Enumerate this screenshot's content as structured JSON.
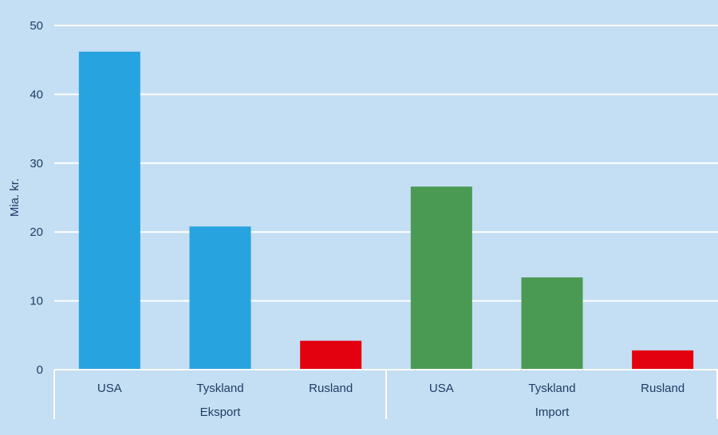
{
  "chart_data": {
    "type": "bar",
    "ylabel": "Mia. kr.",
    "ylim": [
      0,
      50
    ],
    "yticks": [
      0,
      10,
      20,
      30,
      40,
      50
    ],
    "grid": true,
    "groups": [
      {
        "name": "Eksport",
        "categories": [
          "USA",
          "Tyskland",
          "Rusland"
        ],
        "values": [
          46.2,
          20.8,
          4.2
        ],
        "colors": [
          "#27a3df",
          "#27a3df",
          "#e3000f"
        ]
      },
      {
        "name": "Import",
        "categories": [
          "USA",
          "Tyskland",
          "Rusland"
        ],
        "values": [
          26.6,
          13.4,
          2.8
        ],
        "colors": [
          "#4a9a54",
          "#4a9a54",
          "#e3000f"
        ]
      }
    ]
  }
}
